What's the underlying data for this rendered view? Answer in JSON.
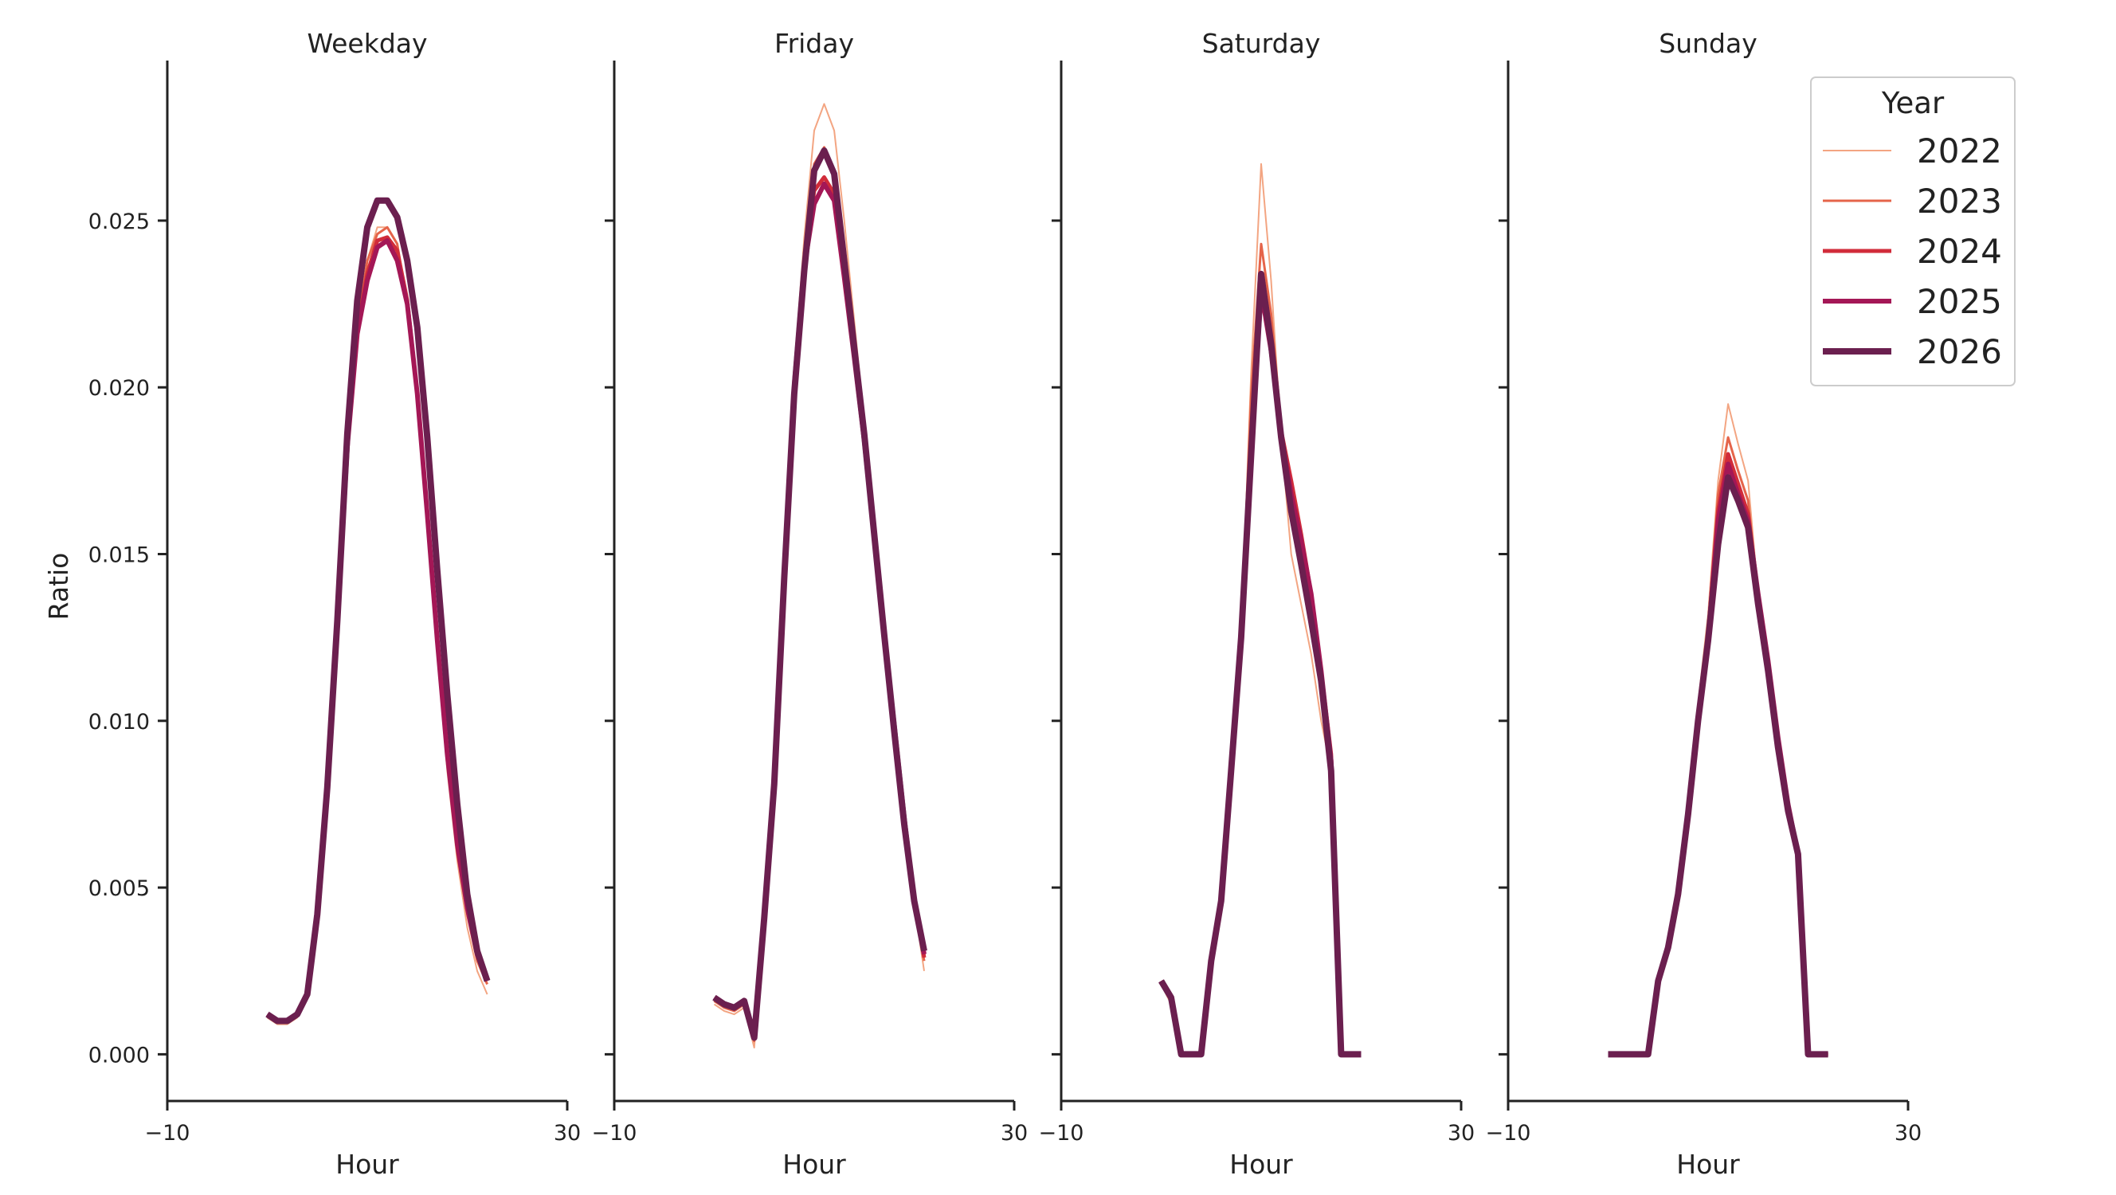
{
  "chart_data": {
    "type": "line",
    "ylabel": "Ratio",
    "ylim": [
      -0.0014,
      0.0298
    ],
    "yticks": [
      0.0,
      0.005,
      0.01,
      0.015,
      0.02,
      0.025
    ],
    "ytick_labels": [
      "0.000",
      "0.005",
      "0.010",
      "0.015",
      "0.020",
      "0.025"
    ],
    "xlim": [
      -10,
      30
    ],
    "xticks": [
      -10,
      30
    ],
    "xtick_labels": [
      "−10",
      "30"
    ],
    "legend": {
      "title": "Year",
      "placement": "top-right"
    },
    "years": [
      {
        "name": "2022",
        "color": "#f3a582",
        "width": 2
      },
      {
        "name": "2023",
        "color": "#e5644a",
        "width": 3
      },
      {
        "name": "2024",
        "color": "#d12c3a",
        "width": 5
      },
      {
        "name": "2025",
        "color": "#a41756",
        "width": 6
      },
      {
        "name": "2026",
        "color": "#6b1f4f",
        "width": 8
      }
    ],
    "facets": [
      {
        "title": "Weekday",
        "xlabel": "Hour",
        "x": [
          0,
          1,
          2,
          3,
          4,
          5,
          6,
          7,
          8,
          9,
          10,
          11,
          12,
          13,
          14,
          15,
          16,
          17,
          18,
          19,
          20,
          21,
          22,
          23
        ],
        "series": [
          [
            0.0011,
            0.0009,
            0.0009,
            0.0011,
            0.0017,
            0.004,
            0.0078,
            0.0127,
            0.018,
            0.0215,
            0.0238,
            0.0248,
            0.0248,
            0.0243,
            0.0225,
            0.0195,
            0.0158,
            0.012,
            0.0085,
            0.0058,
            0.0038,
            0.0025,
            0.0018,
            null
          ],
          [
            0.0012,
            0.001,
            0.001,
            0.0012,
            0.0018,
            0.0041,
            0.0079,
            0.0128,
            0.0182,
            0.0218,
            0.0238,
            0.0246,
            0.0248,
            0.0243,
            0.0225,
            0.0196,
            0.016,
            0.0122,
            0.0088,
            0.006,
            0.0042,
            0.0028,
            0.0021,
            null
          ],
          [
            0.0012,
            0.001,
            0.001,
            0.0012,
            0.0018,
            0.0041,
            0.0079,
            0.0128,
            0.0183,
            0.0217,
            0.0234,
            0.0244,
            0.0245,
            0.0241,
            0.0226,
            0.0198,
            0.0162,
            0.0124,
            0.009,
            0.0063,
            0.0044,
            0.003,
            0.0022,
            null
          ],
          [
            0.0012,
            0.001,
            0.001,
            0.0012,
            0.0018,
            0.0042,
            0.008,
            0.0129,
            0.0182,
            0.0216,
            0.0232,
            0.0242,
            0.0244,
            0.0238,
            0.0225,
            0.0198,
            0.0162,
            0.0124,
            0.009,
            0.0063,
            0.0044,
            0.003,
            0.0022,
            null
          ],
          [
            0.0012,
            0.001,
            0.001,
            0.0012,
            0.0018,
            0.0042,
            0.008,
            0.013,
            0.0186,
            0.0226,
            0.0248,
            0.0256,
            0.0256,
            0.0251,
            0.0238,
            0.0218,
            0.0185,
            0.0145,
            0.0108,
            0.0075,
            0.0048,
            0.0031,
            0.0022,
            null
          ]
        ]
      },
      {
        "title": "Friday",
        "xlabel": "Hour",
        "x": [
          0,
          1,
          2,
          3,
          4,
          5,
          6,
          7,
          8,
          9,
          10,
          11,
          12,
          13,
          14,
          15,
          16,
          17,
          18,
          19,
          20,
          21,
          22,
          23
        ],
        "series": [
          [
            0.0015,
            0.0013,
            0.0012,
            0.0014,
            0.0002,
            0.004,
            0.008,
            0.0145,
            0.0205,
            0.0245,
            0.0277,
            0.0285,
            0.0277,
            0.025,
            0.022,
            0.019,
            0.016,
            0.0132,
            0.0102,
            0.007,
            0.0045,
            0.0025,
            null,
            null
          ],
          [
            0.0016,
            0.0014,
            0.0013,
            0.0015,
            0.0004,
            0.004,
            0.008,
            0.0143,
            0.0203,
            0.0241,
            0.0267,
            0.0272,
            0.0265,
            0.024,
            0.0215,
            0.0188,
            0.0158,
            0.0128,
            0.01,
            0.0072,
            0.0047,
            0.0028,
            null,
            null
          ],
          [
            0.0017,
            0.0015,
            0.0014,
            0.0016,
            0.0005,
            0.004,
            0.008,
            0.0142,
            0.0202,
            0.0238,
            0.0259,
            0.0263,
            0.0258,
            0.0235,
            0.021,
            0.0185,
            0.0156,
            0.0127,
            0.0099,
            0.0071,
            0.0046,
            0.0029,
            null,
            null
          ],
          [
            0.0017,
            0.0015,
            0.0014,
            0.0016,
            0.0005,
            0.004,
            0.008,
            0.0142,
            0.02,
            0.0236,
            0.0255,
            0.0261,
            0.0256,
            0.0233,
            0.0209,
            0.0184,
            0.0155,
            0.0126,
            0.0099,
            0.0071,
            0.0046,
            0.003,
            null,
            null
          ],
          [
            0.0017,
            0.0015,
            0.0014,
            0.0016,
            0.0005,
            0.0041,
            0.0081,
            0.0143,
            0.0198,
            0.0235,
            0.0265,
            0.0271,
            0.0264,
            0.0238,
            0.0212,
            0.0186,
            0.0156,
            0.0126,
            0.0097,
            0.0069,
            0.0046,
            0.0031,
            null,
            null
          ]
        ]
      },
      {
        "title": "Saturday",
        "xlabel": "Hour",
        "x": [
          0,
          1,
          2,
          3,
          4,
          5,
          6,
          7,
          8,
          9,
          10,
          11,
          12,
          13,
          14,
          15,
          16,
          17,
          18,
          19,
          20,
          21,
          22,
          23
        ],
        "series": [
          [
            0.0021,
            0.0015,
            0.0,
            0.0,
            0.0,
            0.0028,
            0.0045,
            0.0085,
            0.0125,
            0.0205,
            0.0267,
            0.0232,
            0.0185,
            0.015,
            0.0135,
            0.012,
            0.01,
            0.0085,
            0.0,
            0.0,
            0.0,
            null,
            null,
            null
          ],
          [
            0.0021,
            0.0016,
            0.0,
            0.0,
            0.0,
            0.0028,
            0.0046,
            0.0085,
            0.0125,
            0.0198,
            0.0243,
            0.0222,
            0.0189,
            0.0165,
            0.0148,
            0.013,
            0.0108,
            0.0087,
            0.0,
            0.0,
            0.0,
            null,
            null,
            null
          ],
          [
            0.0022,
            0.0017,
            0.0,
            0.0,
            0.0,
            0.0028,
            0.0046,
            0.0085,
            0.0125,
            0.0185,
            0.0232,
            0.0213,
            0.0187,
            0.0172,
            0.0156,
            0.0138,
            0.0115,
            0.009,
            0.0,
            0.0,
            0.0,
            null,
            null,
            null
          ],
          [
            0.0022,
            0.0017,
            0.0,
            0.0,
            0.0,
            0.0028,
            0.0046,
            0.0085,
            0.0125,
            0.0182,
            0.0229,
            0.0211,
            0.0186,
            0.0168,
            0.0154,
            0.0138,
            0.0115,
            0.0088,
            0.0,
            0.0,
            0.0,
            null,
            null,
            null
          ],
          [
            0.0022,
            0.0017,
            0.0,
            0.0,
            0.0,
            0.0028,
            0.0046,
            0.0085,
            0.0125,
            0.018,
            0.0234,
            0.0213,
            0.0185,
            0.0163,
            0.0147,
            0.013,
            0.0112,
            0.0085,
            0.0,
            0.0,
            0.0,
            null,
            null,
            null
          ]
        ]
      },
      {
        "title": "Sunday",
        "xlabel": "Hour",
        "x": [
          0,
          1,
          2,
          3,
          4,
          5,
          6,
          7,
          8,
          9,
          10,
          11,
          12,
          13,
          14,
          15,
          16,
          17,
          18,
          19,
          20,
          21,
          22,
          23
        ],
        "series": [
          [
            0.0,
            0.0,
            0.0,
            0.0,
            0.0,
            0.0022,
            0.0032,
            0.0048,
            0.0072,
            0.0105,
            0.0132,
            0.0172,
            0.0195,
            0.0183,
            0.0172,
            0.0138,
            0.012,
            0.0095,
            0.0075,
            0.006,
            0.0,
            0.0,
            0.0,
            null
          ],
          [
            0.0,
            0.0,
            0.0,
            0.0,
            0.0,
            0.0022,
            0.0032,
            0.0048,
            0.0072,
            0.0103,
            0.0128,
            0.0168,
            0.0185,
            0.0175,
            0.0166,
            0.0138,
            0.0118,
            0.0095,
            0.0075,
            0.006,
            0.0,
            0.0,
            0.0,
            null
          ],
          [
            0.0,
            0.0,
            0.0,
            0.0,
            0.0,
            0.0022,
            0.0032,
            0.0048,
            0.0072,
            0.0102,
            0.0126,
            0.0163,
            0.018,
            0.0171,
            0.0162,
            0.0138,
            0.0118,
            0.0095,
            0.0075,
            0.006,
            0.0,
            0.0,
            0.0,
            null
          ],
          [
            0.0,
            0.0,
            0.0,
            0.0,
            0.0,
            0.0022,
            0.0032,
            0.0048,
            0.0072,
            0.0101,
            0.0125,
            0.016,
            0.0177,
            0.0168,
            0.016,
            0.0138,
            0.0118,
            0.0095,
            0.0075,
            0.006,
            0.0,
            0.0,
            0.0,
            null
          ],
          [
            0.0,
            0.0,
            0.0,
            0.0,
            0.0,
            0.0022,
            0.0032,
            0.0048,
            0.0072,
            0.01,
            0.0124,
            0.0153,
            0.0173,
            0.0166,
            0.0158,
            0.0135,
            0.0115,
            0.0092,
            0.0073,
            0.006,
            0.0,
            0.0,
            0.0,
            null
          ]
        ]
      }
    ]
  }
}
